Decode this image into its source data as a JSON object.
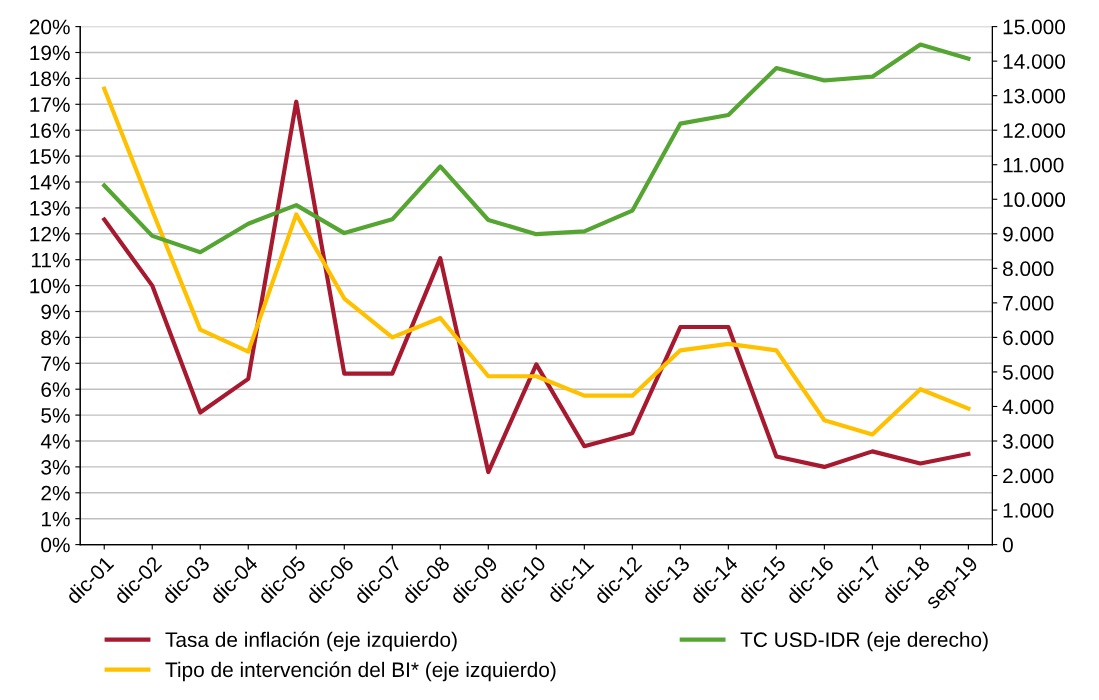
{
  "chart_data": {
    "type": "line",
    "categories": [
      "dic-01",
      "dic-02",
      "dic-03",
      "dic-04",
      "dic-05",
      "dic-06",
      "dic-07",
      "dic-08",
      "dic-09",
      "dic-10",
      "dic-11",
      "dic-12",
      "dic-13",
      "dic-14",
      "dic-15",
      "dic-16",
      "dic-17",
      "dic-18",
      "sep-19"
    ],
    "series": [
      {
        "name": "Tasa de inflación (eje izquierdo)",
        "color": "#a6192e",
        "values": [
          12.55,
          10.0,
          5.1,
          6.4,
          17.1,
          6.6,
          6.6,
          11.06,
          2.8,
          6.96,
          3.8,
          4.3,
          8.4,
          8.4,
          3.4,
          3.0,
          3.6,
          3.13,
          3.5
        ]
      },
      {
        "name": "Tipo de intervención del BI* (eje izquierdo)",
        "color": "#ffc000",
        "values": [
          17.6,
          12.9,
          8.3,
          7.45,
          12.75,
          9.5,
          8.0,
          8.75,
          6.5,
          6.5,
          5.75,
          5.75,
          7.5,
          7.75,
          7.5,
          4.8,
          4.25,
          6.0,
          5.25
        ]
      },
      {
        "name": "TC USD-IDR (eje derecho)",
        "color": "#55a532",
        "axis": "y2",
        "values": [
          10400,
          8940,
          8465,
          9290,
          9830,
          9020,
          9420,
          10950,
          9400,
          8990,
          9070,
          9670,
          12190,
          12440,
          13800,
          13440,
          13550,
          14480,
          14070
        ]
      }
    ],
    "ylim": [
      0,
      20
    ],
    "yticks": [
      {
        "value": 0,
        "label": "0%"
      },
      {
        "value": 1,
        "label": "1%"
      },
      {
        "value": 2,
        "label": "2%"
      },
      {
        "value": 3,
        "label": "3%"
      },
      {
        "value": 4,
        "label": "4%"
      },
      {
        "value": 5,
        "label": "5%"
      },
      {
        "value": 6,
        "label": "6%"
      },
      {
        "value": 7,
        "label": "7%"
      },
      {
        "value": 8,
        "label": "8%"
      },
      {
        "value": 9,
        "label": "9%"
      },
      {
        "value": 10,
        "label": "10%"
      },
      {
        "value": 11,
        "label": "11%"
      },
      {
        "value": 12,
        "label": "12%"
      },
      {
        "value": 13,
        "label": "13%"
      },
      {
        "value": 14,
        "label": "14%"
      },
      {
        "value": 15,
        "label": "15%"
      },
      {
        "value": 16,
        "label": "16%"
      },
      {
        "value": 17,
        "label": "17%"
      },
      {
        "value": 18,
        "label": "18%"
      },
      {
        "value": 19,
        "label": "19%"
      },
      {
        "value": 20,
        "label": "20%"
      }
    ],
    "y2lim": [
      0,
      15000
    ],
    "y2ticks": [
      {
        "value": 0,
        "label": "0"
      },
      {
        "value": 1000,
        "label": "1.000"
      },
      {
        "value": 2000,
        "label": "2.000"
      },
      {
        "value": 3000,
        "label": "3.000"
      },
      {
        "value": 4000,
        "label": "4.000"
      },
      {
        "value": 5000,
        "label": "5.000"
      },
      {
        "value": 6000,
        "label": "6.000"
      },
      {
        "value": 7000,
        "label": "7.000"
      },
      {
        "value": 8000,
        "label": "8.000"
      },
      {
        "value": 9000,
        "label": "9.000"
      },
      {
        "value": 10000,
        "label": "10.000"
      },
      {
        "value": 11000,
        "label": "11.000"
      },
      {
        "value": 12000,
        "label": "12.000"
      },
      {
        "value": 13000,
        "label": "13.000"
      },
      {
        "value": 14000,
        "label": "14.000"
      },
      {
        "value": 15000,
        "label": "15.000"
      }
    ],
    "grid": "y",
    "legend": "bottom"
  }
}
